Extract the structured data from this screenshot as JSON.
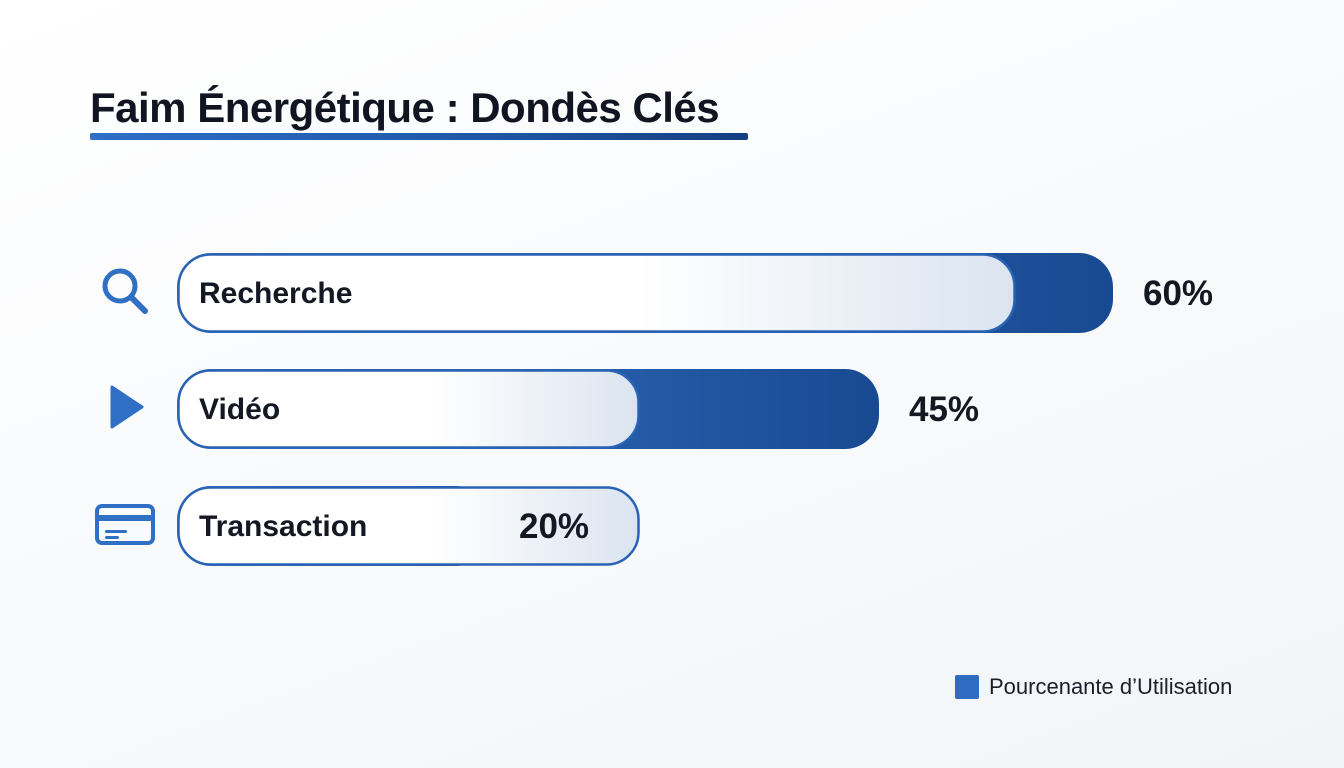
{
  "chart_data": {
    "type": "bar",
    "orientation": "horizontal",
    "title": "Faim Énergétique : Dondès Clés",
    "categories": [
      "Recherche",
      "Vidéo",
      "Transaction"
    ],
    "series": [
      {
        "name": "Pourcenante d’Utilisation",
        "values": [
          60,
          45,
          20
        ]
      }
    ],
    "value_labels": [
      "60%",
      "45%",
      "20%"
    ],
    "icons": [
      "search-icon",
      "play-icon",
      "credit-card-icon"
    ],
    "legend_position": "bottom-right",
    "grid": false,
    "colors": {
      "bar": "#1f5bab",
      "bar_dark": "#184a91",
      "bar_light": "#3a79cf",
      "outline": "#2a63b3",
      "icon": "#2f6fc4"
    }
  }
}
